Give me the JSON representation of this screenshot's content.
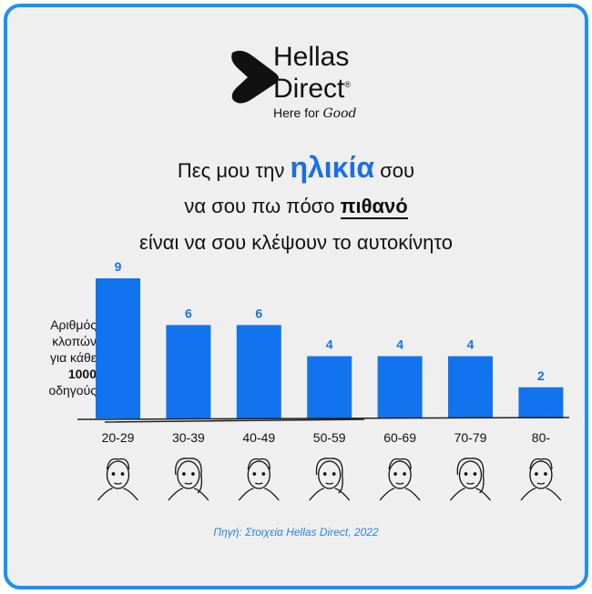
{
  "brand": {
    "name_line1": "Hellas",
    "name_line2": "Direct",
    "registered": "®",
    "tagline": "Here for",
    "tagline_script": "Good"
  },
  "headline": {
    "l1_pre": "Πες μου την",
    "l1_hl": "ηλικία",
    "l1_post": "σου",
    "l2_pre": "να σου πω πόσο",
    "l2_ul": "πιθανό",
    "l3": "είναι να σου κλέψουν το αυτοκίνητο"
  },
  "ylabel": {
    "l1": "Αριθμός",
    "l2": "κλοπών",
    "l3": "για κάθε",
    "l4": "1000",
    "l5": "οδηγούς"
  },
  "source": "Πηγή: Στοιχεία Hellas Direct, 2022",
  "colors": {
    "bar": "#1273ee",
    "label": "#1a6fe8",
    "frame": "#1e90f0"
  },
  "chart_data": {
    "type": "bar",
    "title": "",
    "xlabel": "",
    "ylabel": "Αριθμός κλοπών για κάθε 1000 οδηγούς",
    "categories": [
      "20-29",
      "30-39",
      "40-49",
      "50-59",
      "60-69",
      "70-79",
      "80-"
    ],
    "values": [
      9,
      6,
      6,
      4,
      4,
      4,
      2
    ],
    "ylim": [
      0,
      9
    ],
    "grid": false
  }
}
